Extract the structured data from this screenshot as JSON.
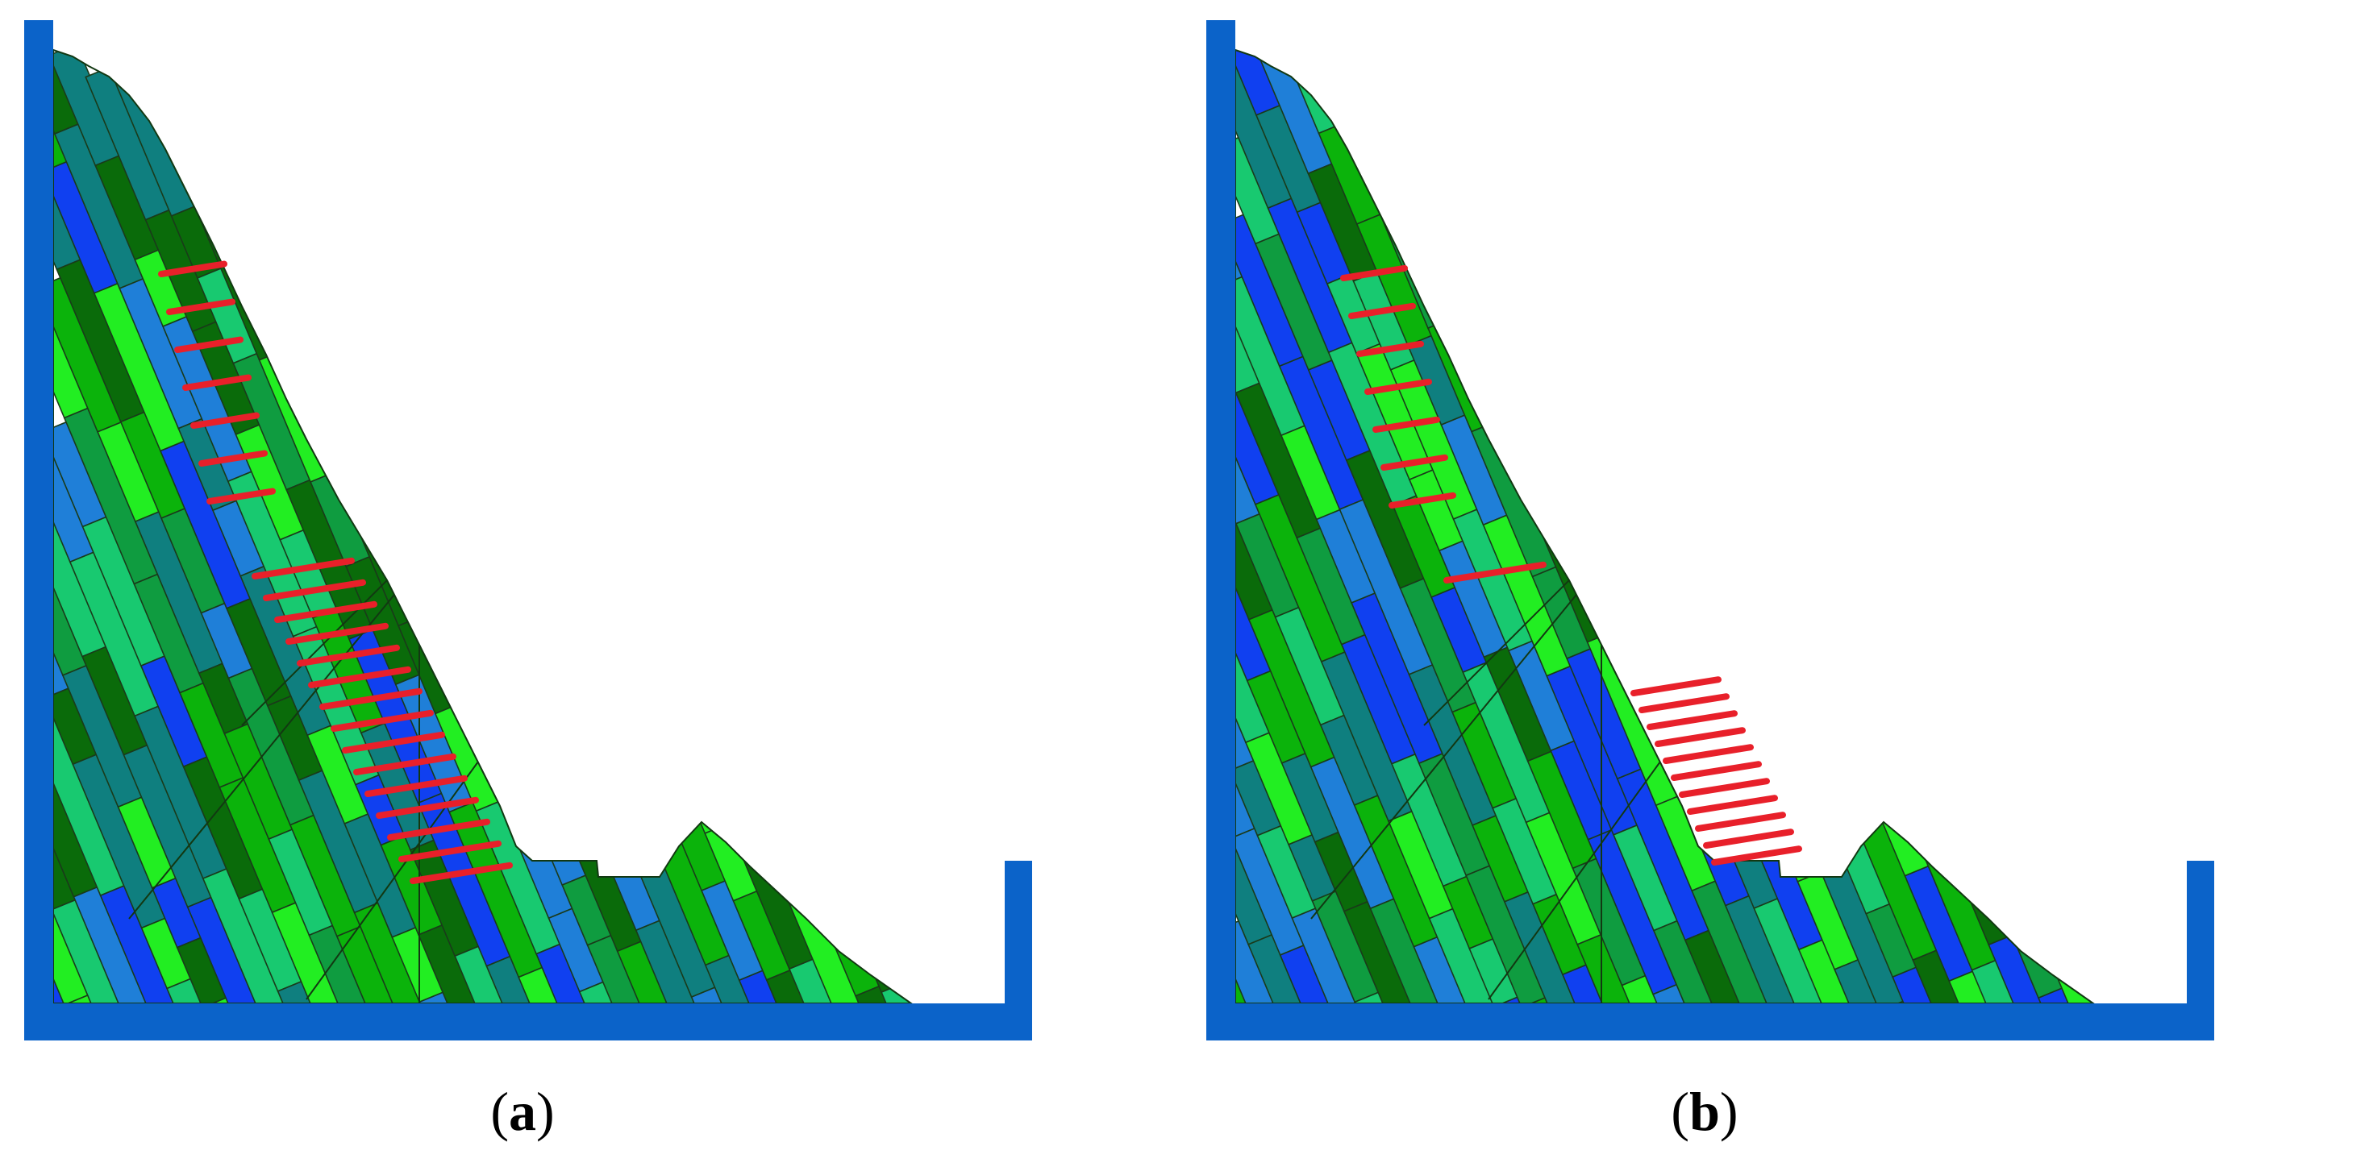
{
  "panels": [
    {
      "id": "a",
      "caption_open": "(",
      "caption_letter": "a",
      "caption_close": ")"
    },
    {
      "id": "b",
      "caption_open": "(",
      "caption_letter": "b",
      "caption_close": ")"
    }
  ],
  "colors": {
    "frame": "#0b63c9",
    "bolt": "#e8202a",
    "block_palette": [
      "#0a6b0a",
      "#0bb30b",
      "#22ee22",
      "#18c970",
      "#0f7f7f",
      "#1f7fd8",
      "#1040f0",
      "#0f9c40"
    ]
  }
}
